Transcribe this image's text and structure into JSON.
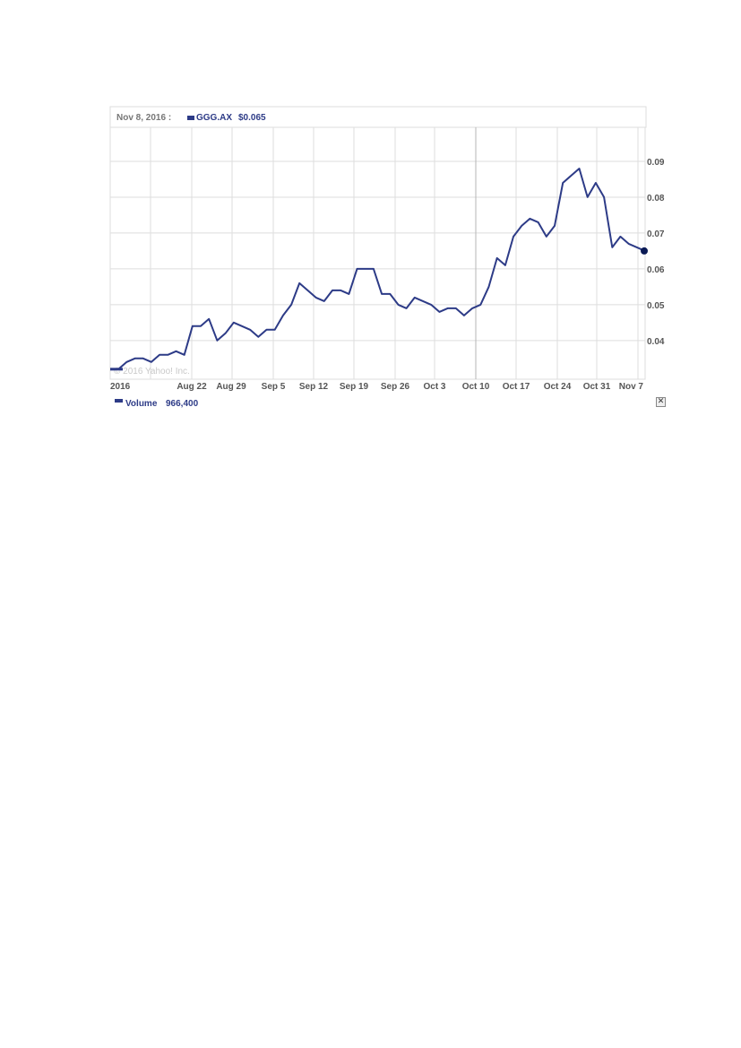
{
  "header": {
    "date_label": "Nov 8, 2016 :",
    "symbol": "GGG.AX",
    "price": "$0.065"
  },
  "footer": {
    "volume_label": "Volume",
    "volume_value": "966,400",
    "close_glyph": "✕"
  },
  "copyright": "© 2016 Yahoo! Inc.",
  "colors": {
    "line": "#2d3b87",
    "grid": "#dddddd",
    "marker": "#0a1a55"
  },
  "chart_data": {
    "type": "line",
    "title": "",
    "xlabel": "",
    "ylabel": "",
    "ylim": [
      0.0292,
      0.0995
    ],
    "yticks": [
      "0.04",
      "0.05",
      "0.06",
      "0.07",
      "0.08",
      "0.09"
    ],
    "ytick_values": [
      0.04,
      0.05,
      0.06,
      0.07,
      0.08,
      0.09
    ],
    "xticks": [
      "2016",
      "Aug 22",
      "Aug 29",
      "Sep 5",
      "Sep 12",
      "Sep 19",
      "Sep 26",
      "Oct 3",
      "Oct 10",
      "Oct 17",
      "Oct 24",
      "Oct 31",
      "Nov 7"
    ],
    "grid": true,
    "series": [
      {
        "name": "GGG.AX",
        "values": [
          0.032,
          0.032,
          0.034,
          0.035,
          0.035,
          0.034,
          0.036,
          0.036,
          0.037,
          0.036,
          0.044,
          0.044,
          0.046,
          0.04,
          0.042,
          0.045,
          0.044,
          0.043,
          0.041,
          0.043,
          0.043,
          0.047,
          0.05,
          0.056,
          0.054,
          0.052,
          0.051,
          0.054,
          0.054,
          0.053,
          0.06,
          0.06,
          0.06,
          0.053,
          0.053,
          0.05,
          0.049,
          0.052,
          0.051,
          0.05,
          0.048,
          0.049,
          0.049,
          0.047,
          0.049,
          0.05,
          0.055,
          0.063,
          0.061,
          0.069,
          0.072,
          0.074,
          0.073,
          0.069,
          0.072,
          0.084,
          0.086,
          0.088,
          0.08,
          0.084,
          0.08,
          0.066,
          0.069,
          0.067,
          0.066,
          0.065
        ]
      }
    ]
  }
}
